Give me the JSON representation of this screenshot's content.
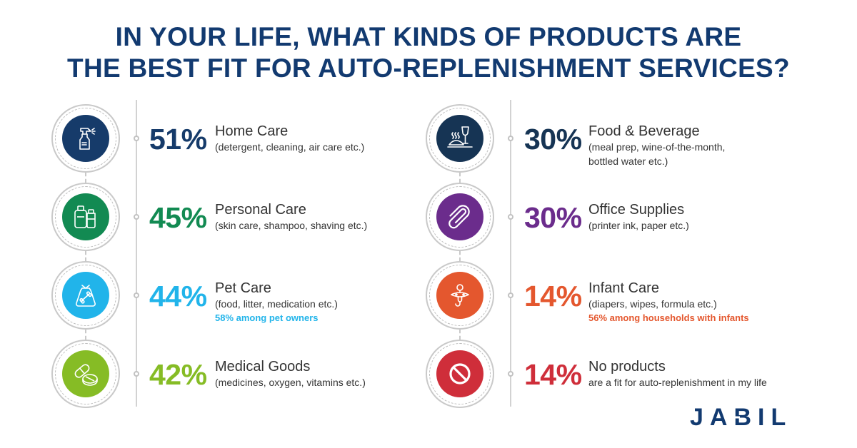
{
  "title_line1": "IN YOUR LIFE, WHAT KINDS OF PRODUCTS ARE",
  "title_line2": "THE BEST FIT FOR AUTO-REPLENISHMENT SERVICES?",
  "logo_text": "JABIL",
  "colors": {
    "title": "#123a70",
    "home_care": "#163b6a",
    "personal_care": "#128a52",
    "pet_care": "#21b4ea",
    "medical_goods": "#86bc25",
    "food_beverage": "#163454",
    "office_supplies": "#6b2c8c",
    "infant_care": "#e4572e",
    "no_products": "#cf2e3a",
    "rule": "#d2d2d2"
  },
  "chart_data": {
    "type": "table",
    "unit": "%",
    "rows": [
      {
        "category": "Home Care",
        "value": 51,
        "value_label": "51%",
        "detail": "(detergent, cleaning, air care etc.)",
        "note": "",
        "icon": "spray-bottle-icon",
        "color": "#163b6a"
      },
      {
        "category": "Personal Care",
        "value": 45,
        "value_label": "45%",
        "detail": "(skin care, shampoo, shaving etc.)",
        "note": "",
        "icon": "toiletry-bottles-icon",
        "color": "#128a52"
      },
      {
        "category": "Pet Care",
        "value": 44,
        "value_label": "44%",
        "detail": "(food, litter, medication etc.)",
        "note": "58% among pet owners",
        "icon": "pet-food-bag-icon",
        "color": "#21b4ea"
      },
      {
        "category": "Medical Goods",
        "value": 42,
        "value_label": "42%",
        "detail": "(medicines, oxygen, vitamins etc.)",
        "note": "",
        "icon": "pills-icon",
        "color": "#86bc25"
      },
      {
        "category": "Food & Beverage",
        "value": 30,
        "value_label": "30%",
        "detail": "(meal prep, wine-of-the-month,\nbottled water etc.)",
        "note": "",
        "icon": "wine-and-meal-icon",
        "color": "#163454"
      },
      {
        "category": "Office Supplies",
        "value": 30,
        "value_label": "30%",
        "detail": "(printer ink, paper etc.)",
        "note": "",
        "icon": "paperclip-icon",
        "color": "#6b2c8c"
      },
      {
        "category": "Infant Care",
        "value": 14,
        "value_label": "14%",
        "detail": "(diapers, wipes, formula etc.)",
        "note": "56% among households with infants",
        "icon": "pacifier-icon",
        "color": "#e4572e"
      },
      {
        "category": "No products",
        "value": 14,
        "value_label": "14%",
        "detail": "are a fit for auto-replenishment in my life",
        "note": "",
        "icon": "prohibited-icon",
        "color": "#cf2e3a"
      }
    ]
  }
}
